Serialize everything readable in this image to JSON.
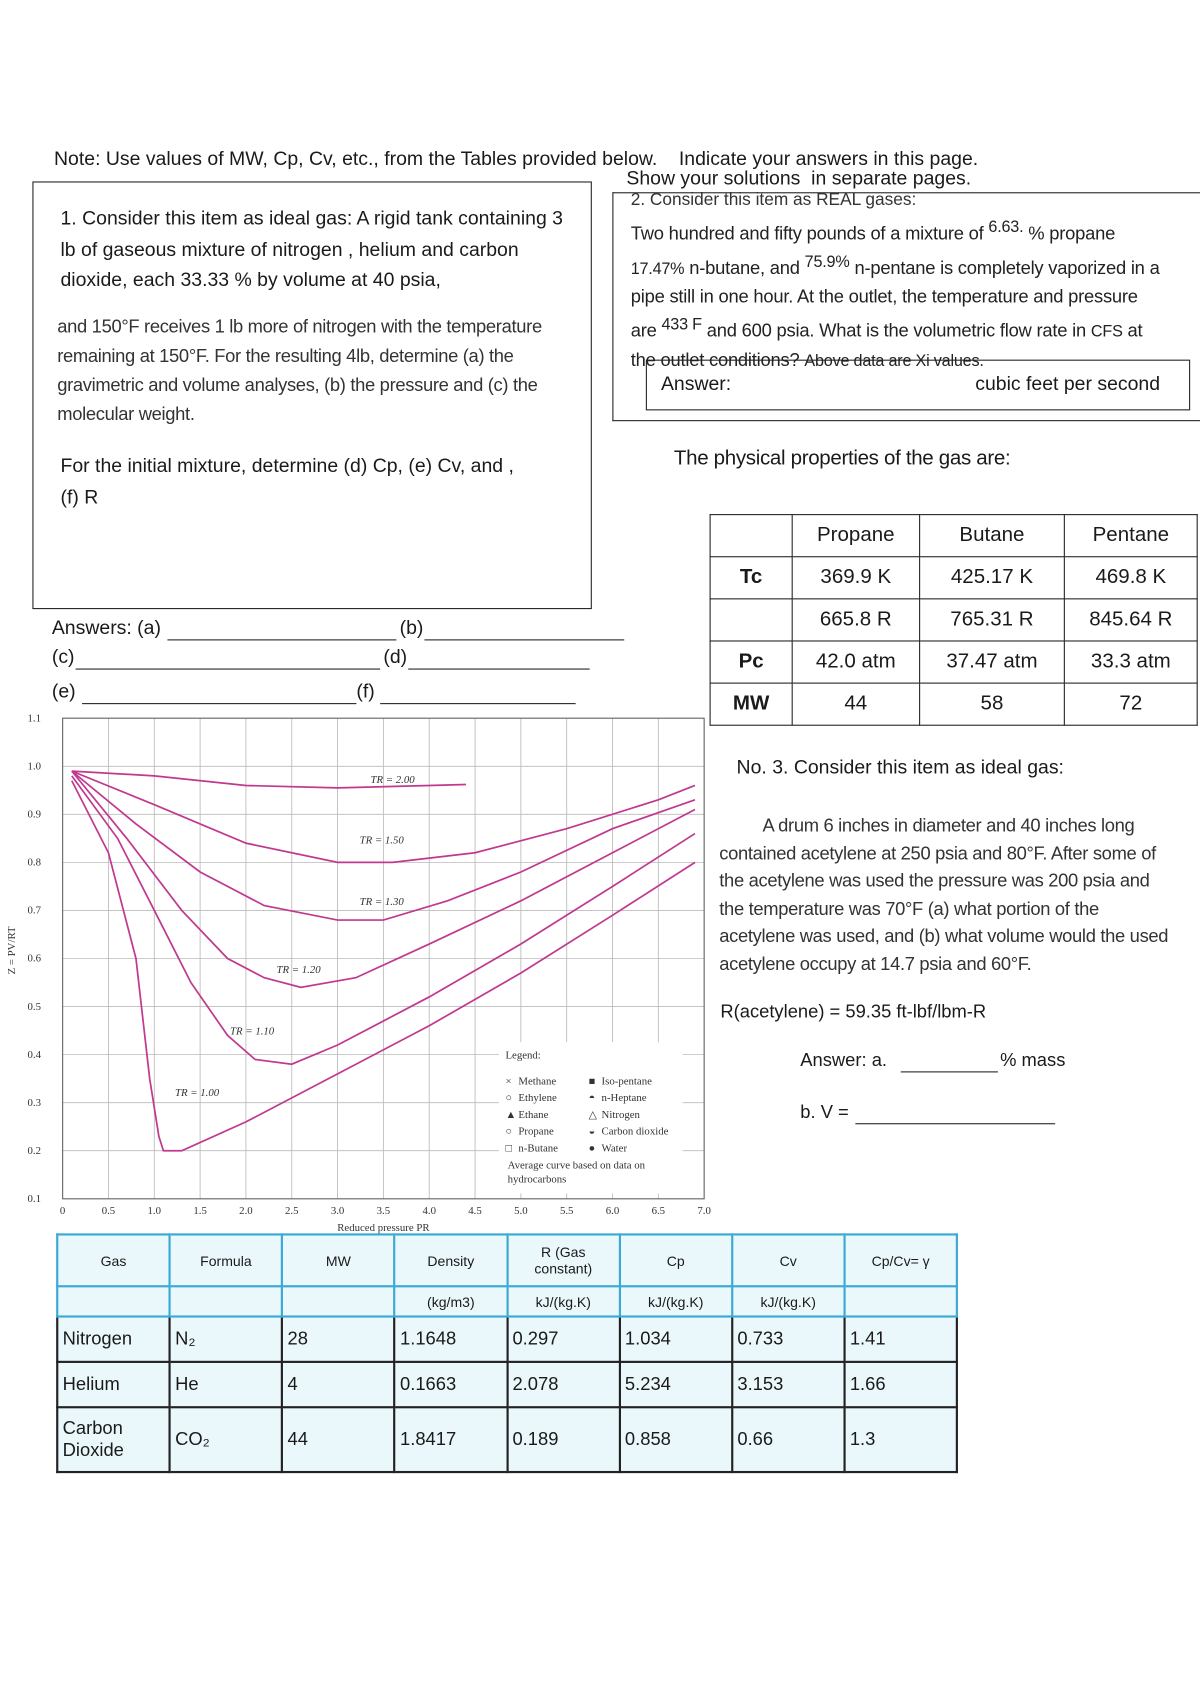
{
  "note": "Note: Use values of MW, Cp, Cv, etc., from the Tables provided below.    Indicate your answers in this page.",
  "note2": "Show your solutions  in separate pages.",
  "item1": {
    "p1": "1. Consider this item as ideal gas: A rigid tank containing 3 lb of gaseous mixture of nitrogen , helium and carbon dioxide, each 33.33 % by volume at 40 psia,",
    "p2": "and 150°F receives 1 lb more of nitrogen with the temperature remaining at 150°F. For the resulting 4lb, determine (a) the gravimetric and volume analyses, (b) the pressure and (c) the molecular weight.",
    "p3": "For the initial mixture, determine (d) Cp, (e) Cv, and , (f) R"
  },
  "answers": [
    "Answers: (a)",
    "(b)",
    "(c)",
    "(d)",
    "(e)",
    "(f)"
  ],
  "item2": {
    "heading": "2. Consider this item as REAL gases:",
    "parts": [
      "Two hundred and fifty  pounds of a mixture of",
      "6.63.",
      "% propane",
      "17.47%",
      "n-butane, and",
      "75.9%",
      "n-pentane is completely vaporized in a pipe still in one hour. At the outlet, the temperature and pressure are",
      "433 F",
      "and 600 psia. What is the volumetric flow rate in",
      "CFS",
      "at the outlet conditions?",
      "Above data are Xi values."
    ],
    "answer_label": "Answer:",
    "answer_unit": "cubic feet per second"
  },
  "properties": {
    "title": "The physical properties of the gas are:",
    "header": [
      "Propane",
      "Butane",
      "Pentane"
    ],
    "rows": [
      [
        "Tc",
        "369.9 K",
        "425.17 K",
        "469.8 K"
      ],
      [
        null,
        "665.8 R",
        "765.31 R",
        "845.64 R"
      ],
      [
        "Pc",
        "42.0 atm",
        "37.47 atm",
        "33.3 atm"
      ],
      [
        "MW",
        "44",
        "58",
        "72"
      ]
    ]
  },
  "item3": {
    "heading": "No. 3. Consider this item as ideal gas:",
    "body": "A drum 6 inches in diameter and 40 inches long contained acetylene at 250 psia and 80°F. After some of the acetylene was used the pressure was 200 psia and the temperature was 70°F (a) what portion of the acetylene was used, and (b) what volume would the used acetylene occupy at 14.7 psia and 60°F.",
    "r": "R(acetylene) = 59.35 ft-lbf/lbm-R",
    "answer_a": "Answer: a.",
    "answer_a_unit": "% mass",
    "answer_b": "b. V ="
  },
  "chart": {
    "type": "line",
    "ylabel": "Z = PV/RT",
    "xlabel": "Reduced pressure PR",
    "xlim": [
      0,
      7
    ],
    "ylim": [
      0.1,
      1.1
    ],
    "xticks": [
      0,
      0.5,
      {
        "value": 1,
        "label": "1.0"
      },
      1.5,
      {
        "value": 2,
        "label": "2.0"
      },
      2.5,
      {
        "value": 3,
        "label": "3.0"
      },
      3.5,
      {
        "value": 4,
        "label": "4.0"
      },
      4.5,
      {
        "value": 5,
        "label": "5.0"
      },
      5.5,
      {
        "value": 6,
        "label": "6.0"
      },
      6.5,
      {
        "value": 7,
        "label": "7.0"
      }
    ],
    "yticks": [
      0.1,
      0.2,
      0.3,
      0.4,
      0.5,
      0.6,
      0.7,
      0.8,
      0.9,
      {
        "value": 1,
        "label": "1.0"
      },
      1.1
    ],
    "grid": true,
    "series": [
      {
        "name": "TR = 2.00",
        "color": "#c0398f",
        "x": [
          0.1,
          1,
          2,
          3,
          4,
          4.4
        ],
        "y": [
          0.99,
          0.98,
          0.96,
          0.955,
          0.96,
          0.962
        ]
      },
      {
        "name": "TR = 1.50",
        "color": "#c0398f",
        "x": [
          0.1,
          1,
          2,
          3,
          3.6,
          4.5,
          5.5,
          6.5,
          6.9
        ],
        "y": [
          0.99,
          0.92,
          0.84,
          0.8,
          0.8,
          0.82,
          0.87,
          0.93,
          0.96
        ]
      },
      {
        "name": "TR = 1.30",
        "color": "#c0398f",
        "x": [
          0.1,
          0.8,
          1.5,
          2.2,
          3,
          3.5,
          4.2,
          5,
          6,
          6.9
        ],
        "y": [
          0.99,
          0.88,
          0.78,
          0.71,
          0.68,
          0.68,
          0.72,
          0.78,
          0.87,
          0.93
        ]
      },
      {
        "name": "TR = 1.20",
        "color": "#c0398f",
        "x": [
          0.1,
          0.7,
          1.3,
          1.8,
          2.2,
          2.6,
          3.2,
          4,
          5,
          6,
          6.9
        ],
        "y": [
          0.99,
          0.85,
          0.7,
          0.6,
          0.56,
          0.54,
          0.56,
          0.63,
          0.72,
          0.82,
          0.91
        ]
      },
      {
        "name": "TR = 1.10",
        "color": "#c0398f",
        "x": [
          0.1,
          0.6,
          1,
          1.4,
          1.8,
          2.1,
          2.5,
          3,
          4,
          5,
          6,
          6.9
        ],
        "y": [
          0.98,
          0.85,
          0.7,
          0.55,
          0.44,
          0.39,
          0.38,
          0.42,
          0.52,
          0.63,
          0.75,
          0.86
        ]
      },
      {
        "name": "TR = 1.00",
        "color": "#c0398f",
        "x": [
          0.1,
          0.5,
          0.8,
          0.95,
          1.05,
          1.1,
          1.3,
          2,
          3,
          4,
          5,
          6,
          6.9
        ],
        "y": [
          0.97,
          0.82,
          0.6,
          0.35,
          0.23,
          0.2,
          0.2,
          0.26,
          0.36,
          0.46,
          0.57,
          0.69,
          0.8
        ]
      }
    ],
    "legend_title": "Legend:",
    "legend": [
      "Methane",
      "Ethylene",
      "Ethane",
      "Propane",
      "n-Butane",
      "Iso-pentane",
      "n-Heptane",
      "Nitrogen",
      "Carbon dioxide",
      "Water"
    ],
    "note": "Average curve based on data on hydrocarbons"
  },
  "table": {
    "header": [
      "Gas",
      "Formula",
      "MW",
      "Density",
      "R (Gas constant)",
      "Cp",
      "Cv",
      "Cp/Cv= γ"
    ],
    "units": [
      null,
      null,
      null,
      "(kg/m3)",
      "kJ/(kg.K)",
      "kJ/(kg.K)",
      "kJ/(kg.K)",
      null
    ],
    "rows": [
      [
        "Nitrogen",
        "N₂",
        "28",
        "1.1648",
        "0.297",
        "1.034",
        "0.733",
        "1.41"
      ],
      [
        "Helium",
        "He",
        "4",
        "0.1663",
        "2.078",
        "5.234",
        "3.153",
        "1.66"
      ],
      [
        "Carbon Dioxide",
        "CO₂",
        "44",
        "1.8417",
        "0.189",
        "0.858",
        "0.66",
        "1.3"
      ]
    ]
  }
}
